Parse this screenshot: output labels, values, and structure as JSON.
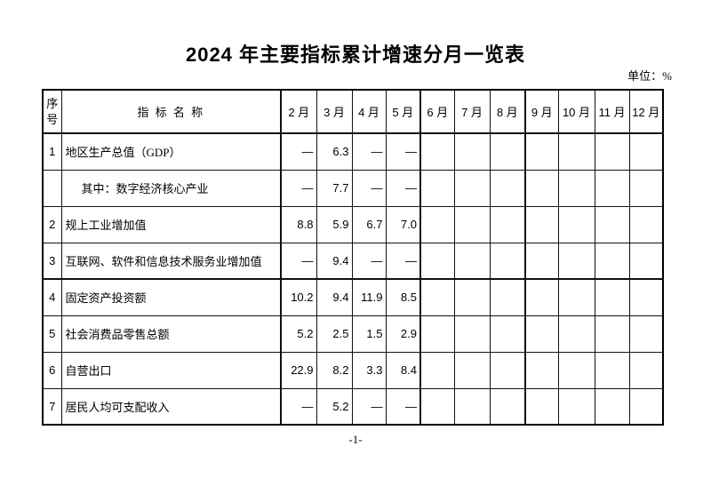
{
  "page": {
    "title": "2024 年主要指标累计增速分月一览表",
    "unit_label": "单位：%",
    "page_number": "-1-"
  },
  "table": {
    "header": {
      "seq": "序号",
      "indicator": "指 标 名 称",
      "months": [
        "2 月",
        "3 月",
        "4 月",
        "5 月",
        "6 月",
        "7 月",
        "8 月",
        "9 月",
        "10 月",
        "11 月",
        "12 月"
      ]
    },
    "rows": [
      {
        "seq": "1",
        "indicator": "地区生产总值（GDP）",
        "indent": false,
        "values": [
          "—",
          "6.3",
          "—",
          "—",
          "",
          "",
          "",
          "",
          "",
          "",
          ""
        ]
      },
      {
        "seq": "",
        "indicator": "其中：数字经济核心产业",
        "indent": true,
        "values": [
          "—",
          "7.7",
          "—",
          "—",
          "",
          "",
          "",
          "",
          "",
          "",
          ""
        ]
      },
      {
        "seq": "2",
        "indicator": "规上工业增加值",
        "indent": false,
        "values": [
          "8.8",
          "5.9",
          "6.7",
          "7.0",
          "",
          "",
          "",
          "",
          "",
          "",
          ""
        ]
      },
      {
        "seq": "3",
        "indicator": "互联网、软件和信息技术服务业增加值",
        "indent": false,
        "values": [
          "—",
          "9.4",
          "—",
          "—",
          "",
          "",
          "",
          "",
          "",
          "",
          ""
        ]
      },
      {
        "seq": "4",
        "indicator": "固定资产投资额",
        "indent": false,
        "values": [
          "10.2",
          "9.4",
          "11.9",
          "8.5",
          "",
          "",
          "",
          "",
          "",
          "",
          ""
        ]
      },
      {
        "seq": "5",
        "indicator": "社会消费品零售总额",
        "indent": false,
        "values": [
          "5.2",
          "2.5",
          "1.5",
          "2.9",
          "",
          "",
          "",
          "",
          "",
          "",
          ""
        ]
      },
      {
        "seq": "6",
        "indicator": "自营出口",
        "indent": false,
        "values": [
          "22.9",
          "8.2",
          "3.3",
          "8.4",
          "",
          "",
          "",
          "",
          "",
          "",
          ""
        ]
      },
      {
        "seq": "7",
        "indicator": "居民人均可支配收入",
        "indent": false,
        "values": [
          "—",
          "5.2",
          "—",
          "—",
          "",
          "",
          "",
          "",
          "",
          "",
          ""
        ]
      }
    ]
  }
}
